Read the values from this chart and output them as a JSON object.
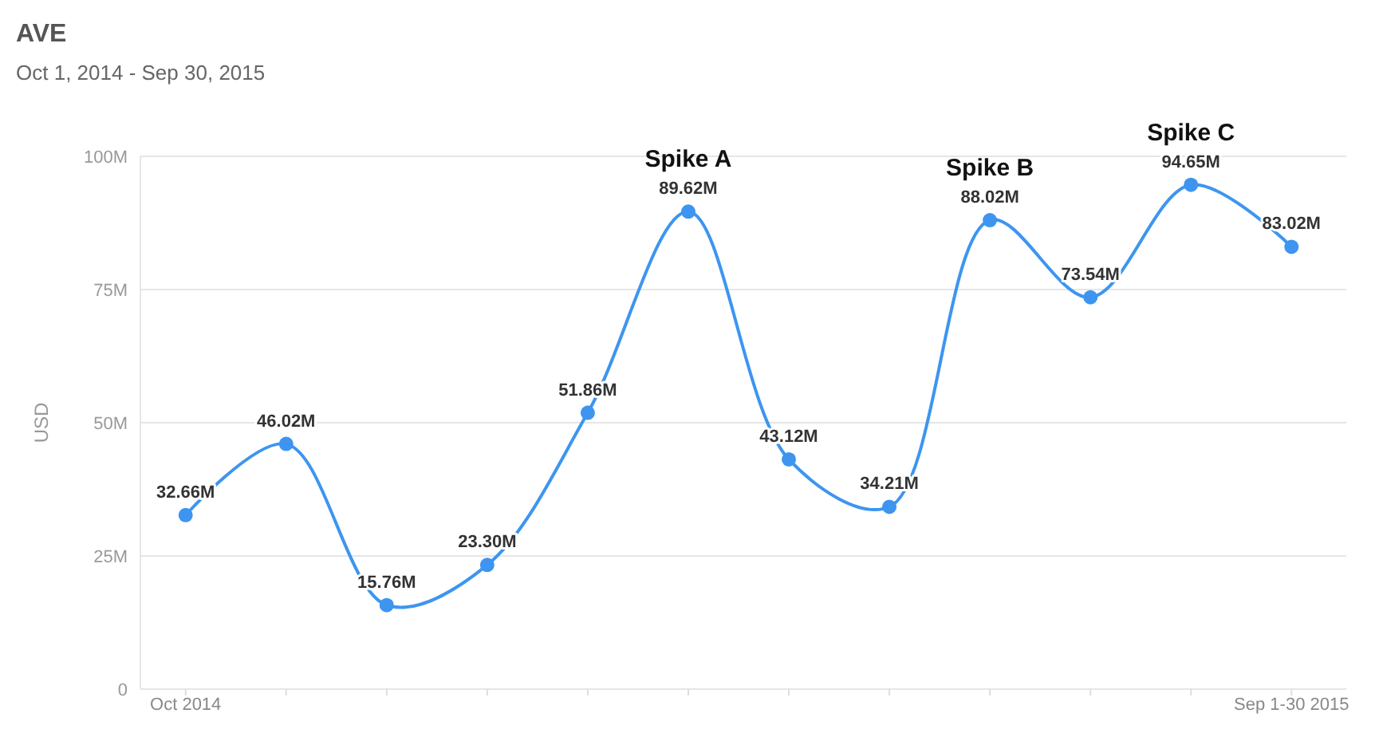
{
  "chart_data": {
    "type": "line",
    "title": "AVE",
    "subtitle": "Oct 1, 2014 - Sep 30, 2015",
    "ylabel": "USD",
    "categories": [
      "Oct 2014",
      null,
      null,
      null,
      null,
      null,
      null,
      null,
      null,
      null,
      null,
      "Sep 1-30 2015"
    ],
    "series": [
      {
        "color": "#3d95f0",
        "values": [
          32.66,
          46.02,
          15.76,
          23.3,
          51.86,
          89.62,
          43.12,
          34.21,
          88.02,
          73.54,
          94.65,
          83.02
        ],
        "value_labels": [
          "32.66M",
          "46.02M",
          "15.76M",
          "23.30M",
          "51.86M",
          "89.62M",
          "43.12M",
          "34.21M",
          "88.02M",
          "73.54M",
          "94.65M",
          "83.02M"
        ]
      }
    ],
    "ylim": [
      0,
      100
    ],
    "yticks": [
      {
        "value": 0,
        "label": "0"
      },
      {
        "value": 25,
        "label": "25M"
      },
      {
        "value": 50,
        "label": "50M"
      },
      {
        "value": 75,
        "label": "75M"
      },
      {
        "value": 100,
        "label": "100M"
      }
    ],
    "annotations": [
      {
        "text": "Spike A",
        "y": 89.62
      },
      {
        "text": "Spike B",
        "y": 88.02
      },
      {
        "text": "Spike C",
        "y": 94.65
      }
    ],
    "grid": "y",
    "marker": "circle"
  }
}
